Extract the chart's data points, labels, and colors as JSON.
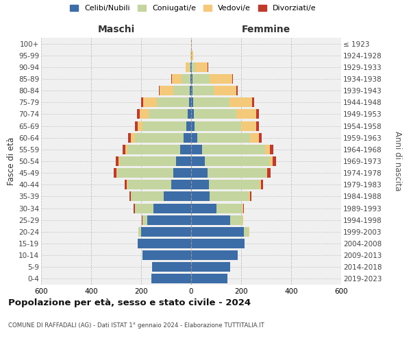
{
  "age_groups": [
    "0-4",
    "5-9",
    "10-14",
    "15-19",
    "20-24",
    "25-29",
    "30-34",
    "35-39",
    "40-44",
    "45-49",
    "50-54",
    "55-59",
    "60-64",
    "65-69",
    "70-74",
    "75-79",
    "80-84",
    "85-89",
    "90-94",
    "95-99",
    "100+"
  ],
  "birth_years": [
    "2019-2023",
    "2014-2018",
    "2009-2013",
    "2004-2008",
    "1999-2003",
    "1994-1998",
    "1989-1993",
    "1984-1988",
    "1979-1983",
    "1974-1978",
    "1969-1973",
    "1964-1968",
    "1959-1963",
    "1954-1958",
    "1949-1953",
    "1944-1948",
    "1939-1943",
    "1934-1938",
    "1929-1933",
    "1924-1928",
    "≤ 1923"
  ],
  "colors": {
    "celibi": "#3d6da6",
    "coniugati": "#c5d5a0",
    "vedovi": "#f5c97a",
    "divorziati": "#c0392b"
  },
  "maschi": {
    "celibi": [
      160,
      155,
      195,
      215,
      200,
      175,
      150,
      110,
      80,
      70,
      60,
      45,
      30,
      20,
      15,
      8,
      5,
      3,
      2,
      0,
      0
    ],
    "coniugati": [
      0,
      0,
      0,
      0,
      10,
      20,
      75,
      130,
      175,
      225,
      225,
      210,
      195,
      175,
      155,
      130,
      65,
      35,
      5,
      1,
      0
    ],
    "vedovi": [
      0,
      0,
      0,
      0,
      2,
      0,
      1,
      1,
      2,
      3,
      5,
      8,
      15,
      20,
      35,
      55,
      55,
      40,
      15,
      2,
      1
    ],
    "divorziati": [
      0,
      0,
      0,
      0,
      0,
      2,
      4,
      6,
      8,
      12,
      12,
      12,
      12,
      10,
      12,
      8,
      5,
      2,
      0,
      0,
      0
    ]
  },
  "femmine": {
    "celibi": [
      145,
      155,
      185,
      215,
      210,
      155,
      100,
      75,
      70,
      65,
      55,
      45,
      25,
      15,
      10,
      8,
      5,
      5,
      2,
      0,
      0
    ],
    "coniugati": [
      0,
      0,
      0,
      0,
      20,
      50,
      105,
      155,
      205,
      235,
      260,
      250,
      210,
      185,
      170,
      145,
      85,
      70,
      15,
      2,
      0
    ],
    "vedovi": [
      0,
      0,
      0,
      0,
      3,
      2,
      2,
      5,
      5,
      5,
      10,
      20,
      35,
      60,
      80,
      90,
      90,
      90,
      50,
      5,
      2
    ],
    "divorziati": [
      0,
      0,
      0,
      0,
      0,
      2,
      5,
      6,
      8,
      12,
      15,
      15,
      12,
      10,
      10,
      8,
      5,
      3,
      2,
      0,
      0
    ]
  },
  "title": "Popolazione per età, sesso e stato civile - 2024",
  "subtitle": "COMUNE DI RAFFADALI (AG) - Dati ISTAT 1° gennaio 2024 - Elaborazione TUTTITALIA.IT",
  "xlabel_left": "Maschi",
  "xlabel_right": "Femmine",
  "ylabel_left": "Fasce di età",
  "ylabel_right": "Anni di nascita",
  "xlim": 600,
  "legend_labels": [
    "Celibi/Nubili",
    "Coniugati/e",
    "Vedovi/e",
    "Divorziati/e"
  ],
  "bg_color": "#ffffff",
  "grid_color": "#bbbbbb"
}
